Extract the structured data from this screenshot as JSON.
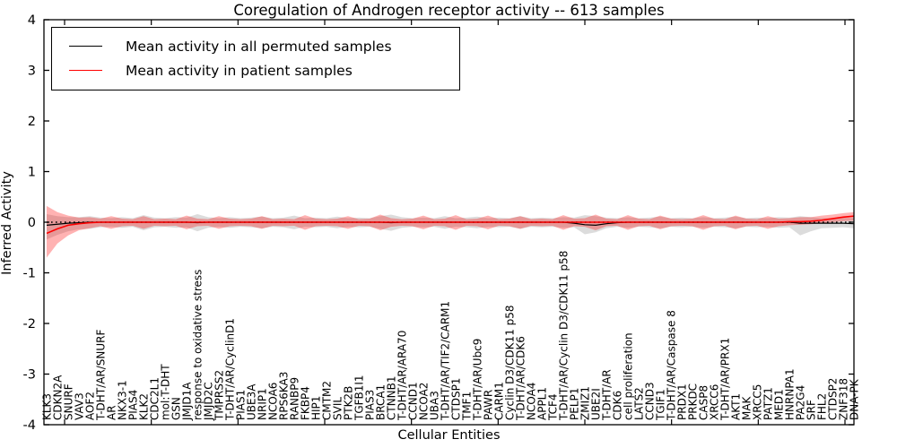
{
  "chart_data": {
    "type": "line",
    "title": "Coregulation of Androgen receptor activity -- 613 samples",
    "xlabel": "Cellular Entities",
    "ylabel": "Inferred Activity",
    "ylim": [
      -4,
      4
    ],
    "yticks": [
      4,
      3,
      2,
      1,
      0,
      -1,
      -2,
      -3,
      -4
    ],
    "grid": false,
    "legend_position": "upper left",
    "zero_line": {
      "y": 0,
      "style": "dotted",
      "color": "#000000"
    },
    "categories": [
      "KLK3",
      "CDKN2A",
      "SNURF",
      "VAV3",
      "AOF2",
      "T-DHT/AR/SNURF",
      "AR",
      "NKX3-1",
      "PIAS4",
      "KLK2",
      "CDC2L1",
      "mol:T-DHT",
      "GSN",
      "JMJD1A",
      "response to oxidative stress",
      "JMJD2C",
      "TMPRSS2",
      "T-DHT/AR/CyclinD1",
      "PIAS1",
      "UBE3A",
      "NRIP1",
      "NCOA6",
      "RPS6KA3",
      "RANBP9",
      "FKBP4",
      "HIP1",
      "CMTM2",
      "SVIL",
      "PTK2B",
      "TGFB1I1",
      "PIAS3",
      "BRCA1",
      "CTNNB1",
      "T-DHT/AR/ARA70",
      "CCND1",
      "NCOA2",
      "UBA3",
      "T-DHT/AR/TIF2/CARM1",
      "CTDSP1",
      "TMF1",
      "T-DHT/AR/Ubc9",
      "PAWR",
      "CARM1",
      "Cyclin D3/CDK11 p58",
      "T-DHT/AR/CDK6",
      "NCOA4",
      "APPL1",
      "TCF4",
      "T-DHT/AR/Cyclin D3/CDK11 p58",
      "PELP1",
      "ZMIZ1",
      "UBE2I",
      "T-DHT/AR",
      "CDK6",
      "cell proliferation",
      "LATS2",
      "CCND3",
      "TGIF1",
      "T-DHT/AR/Caspase 8",
      "PRDX1",
      "PRKDC",
      "CASP8",
      "XRCC6",
      "T-DHT/AR/PRX1",
      "AKT1",
      "MAK",
      "XRCC5",
      "PATZ1",
      "MED1",
      "HNRNPA1",
      "PA2G4",
      "SRF",
      "FHL2",
      "CTDSP2",
      "ZNF318",
      "DNA-PK"
    ],
    "series": [
      {
        "name": "Mean activity in all permuted samples",
        "color": "#000000",
        "band_color": "#808080",
        "band_opacity": 0.28,
        "values": [
          -0.06,
          -0.04,
          -0.02,
          -0.01,
          0,
          0,
          0,
          0,
          0,
          0,
          0,
          0,
          0,
          0,
          -0.01,
          0,
          0,
          0,
          0,
          0,
          0,
          0,
          0,
          0,
          0,
          0,
          0,
          0,
          0,
          0,
          0,
          0,
          -0.01,
          0,
          0,
          0,
          0,
          0,
          0,
          0,
          0,
          0,
          0,
          0,
          0,
          0,
          0,
          0,
          0,
          -0.02,
          -0.05,
          -0.06,
          -0.03,
          -0.01,
          0,
          0,
          0,
          0,
          0,
          0,
          0,
          0,
          0,
          0,
          0,
          0,
          0,
          0,
          0,
          0,
          -0.02,
          -0.02,
          -0.02,
          -0.02,
          -0.02,
          -0.03
        ],
        "band_upper": [
          0.16,
          0.12,
          0.1,
          0.1,
          0.12,
          0.09,
          0.08,
          0.1,
          0.08,
          0.14,
          0.09,
          0.08,
          0.1,
          0.09,
          0.16,
          0.1,
          0.08,
          0.1,
          0.08,
          0.09,
          0.11,
          0.08,
          0.09,
          0.13,
          0.08,
          0.09,
          0.08,
          0.11,
          0.08,
          0.09,
          0.08,
          0.12,
          0.15,
          0.1,
          0.08,
          0.09,
          0.08,
          0.12,
          0.08,
          0.09,
          0.11,
          0.08,
          0.09,
          0.08,
          0.12,
          0.08,
          0.09,
          0.08,
          0.1,
          0.09,
          0.14,
          0.12,
          0.09,
          0.08,
          0.1,
          0.08,
          0.09,
          0.11,
          0.08,
          0.09,
          0.08,
          0.1,
          0.08,
          0.09,
          0.11,
          0.08,
          0.09,
          0.08,
          0.1,
          0.09,
          0.12,
          0.1,
          0.08,
          0.08,
          0.09,
          0.08
        ],
        "band_lower": [
          -0.34,
          -0.25,
          -0.18,
          -0.14,
          -0.13,
          -0.1,
          -0.09,
          -0.11,
          -0.09,
          -0.16,
          -0.1,
          -0.09,
          -0.11,
          -0.1,
          -0.18,
          -0.11,
          -0.09,
          -0.11,
          -0.09,
          -0.1,
          -0.12,
          -0.09,
          -0.1,
          -0.14,
          -0.09,
          -0.1,
          -0.09,
          -0.12,
          -0.09,
          -0.1,
          -0.09,
          -0.13,
          -0.17,
          -0.11,
          -0.09,
          -0.1,
          -0.09,
          -0.13,
          -0.09,
          -0.1,
          -0.12,
          -0.09,
          -0.1,
          -0.09,
          -0.13,
          -0.09,
          -0.1,
          -0.09,
          -0.11,
          -0.1,
          -0.24,
          -0.2,
          -0.12,
          -0.09,
          -0.11,
          -0.09,
          -0.1,
          -0.12,
          -0.09,
          -0.1,
          -0.09,
          -0.11,
          -0.09,
          -0.1,
          -0.12,
          -0.09,
          -0.1,
          -0.09,
          -0.11,
          -0.1,
          -0.26,
          -0.18,
          -0.12,
          -0.11,
          -0.1,
          -0.12
        ]
      },
      {
        "name": "Mean activity in patient samples",
        "color": "#ff0000",
        "band_color": "#ff0000",
        "band_opacity": 0.3,
        "values": [
          -0.22,
          -0.13,
          -0.06,
          -0.03,
          -0.01,
          0,
          0,
          0,
          0,
          0,
          0,
          0,
          0,
          0,
          0,
          0,
          0,
          0,
          0,
          0,
          0,
          0,
          0,
          0,
          0,
          0,
          0,
          0,
          0,
          0,
          0,
          0,
          0,
          0,
          0,
          0,
          0,
          0,
          0,
          0,
          0,
          0,
          0,
          0,
          0,
          0,
          0,
          0,
          0,
          0,
          0,
          0,
          0,
          0,
          0,
          0,
          0,
          0,
          0,
          0,
          0,
          0,
          0,
          0,
          0,
          0,
          0,
          0,
          0,
          0.01,
          0.01,
          0.02,
          0.04,
          0.07,
          0.1,
          0.12
        ],
        "band_upper": [
          0.32,
          0.2,
          0.13,
          0.09,
          0.1,
          0.07,
          0.12,
          0.07,
          0.06,
          0.12,
          0.06,
          0.07,
          0.06,
          0.13,
          0.07,
          0.06,
          0.12,
          0.07,
          0.06,
          0.07,
          0.12,
          0.06,
          0.07,
          0.06,
          0.14,
          0.07,
          0.06,
          0.07,
          0.12,
          0.06,
          0.07,
          0.15,
          0.08,
          0.06,
          0.07,
          0.13,
          0.06,
          0.07,
          0.14,
          0.06,
          0.07,
          0.13,
          0.06,
          0.07,
          0.12,
          0.06,
          0.07,
          0.06,
          0.14,
          0.07,
          0.08,
          0.15,
          0.07,
          0.06,
          0.14,
          0.07,
          0.06,
          0.13,
          0.07,
          0.06,
          0.07,
          0.14,
          0.07,
          0.06,
          0.13,
          0.07,
          0.06,
          0.12,
          0.07,
          0.08,
          0.1,
          0.1,
          0.13,
          0.15,
          0.18,
          0.2
        ],
        "band_lower": [
          -0.7,
          -0.42,
          -0.26,
          -0.16,
          -0.12,
          -0.08,
          -0.13,
          -0.08,
          -0.07,
          -0.13,
          -0.07,
          -0.08,
          -0.07,
          -0.14,
          -0.08,
          -0.07,
          -0.13,
          -0.08,
          -0.07,
          -0.08,
          -0.13,
          -0.07,
          -0.08,
          -0.07,
          -0.15,
          -0.08,
          -0.07,
          -0.08,
          -0.13,
          -0.07,
          -0.08,
          -0.16,
          -0.09,
          -0.07,
          -0.08,
          -0.14,
          -0.07,
          -0.08,
          -0.15,
          -0.07,
          -0.08,
          -0.14,
          -0.07,
          -0.08,
          -0.13,
          -0.07,
          -0.08,
          -0.07,
          -0.15,
          -0.08,
          -0.09,
          -0.16,
          -0.08,
          -0.07,
          -0.15,
          -0.08,
          -0.07,
          -0.14,
          -0.08,
          -0.07,
          -0.08,
          -0.15,
          -0.08,
          -0.07,
          -0.14,
          -0.08,
          -0.07,
          -0.13,
          -0.08,
          -0.06,
          -0.05,
          -0.04,
          -0.02,
          0.0,
          0.02,
          0.03
        ]
      }
    ]
  }
}
